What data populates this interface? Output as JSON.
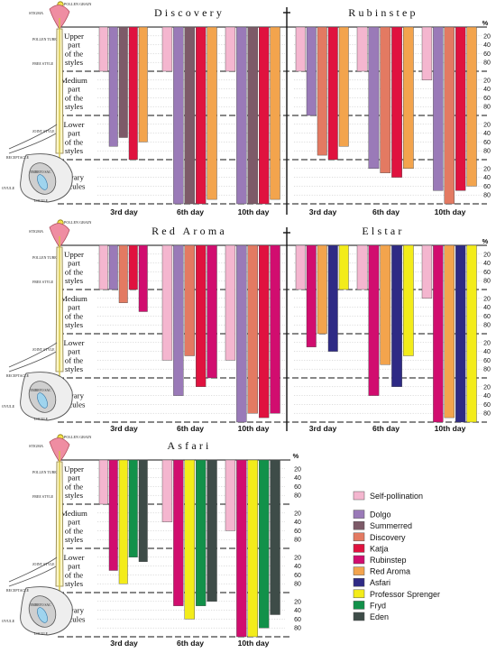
{
  "pistil_labels": {
    "pollen_grain": "POLLEN GRAIN",
    "stigma": "STIGMA",
    "pollen_tube": "POLLEN TUBE",
    "free_style": "FREE STYLE",
    "joint_style": "JOINT STYLE",
    "receptacle": "RECEPTACLE",
    "embryo_sac": "EMBRYO SAC",
    "ovule": "OVULE",
    "locule": "LOCULE"
  },
  "zones": [
    "Upper part of the styles",
    "Medium part of the styles",
    "Lower part of the styles",
    "Ovary locules"
  ],
  "zone_lines": [
    [
      "Upper",
      "part",
      "of the",
      "styles"
    ],
    [
      "Medium",
      "part",
      "of the",
      "styles"
    ],
    [
      "Lower",
      "part",
      "of the",
      "styles"
    ],
    [
      "Ovary",
      "locules"
    ]
  ],
  "percent_label": "%",
  "y_ticks": [
    [
      "20",
      "40",
      "60",
      "80"
    ],
    [
      "20",
      "40",
      "60",
      "80"
    ],
    [
      "20",
      "40",
      "60",
      "80"
    ],
    [
      "20",
      "40",
      "60",
      "80"
    ]
  ],
  "day_labels": [
    "3rd day",
    "6th day",
    "10th day"
  ],
  "legend": [
    {
      "name": "Self-pollination",
      "color": "#f4b6cf"
    },
    {
      "name": "Dolgo",
      "color": "#9a7ab8"
    },
    {
      "name": "Summerred",
      "color": "#7d5a68"
    },
    {
      "name": "Discovery",
      "color": "#e37a62"
    },
    {
      "name": "Katja",
      "color": "#e0123f"
    },
    {
      "name": "Rubinstep",
      "color": "#d10d6f"
    },
    {
      "name": "Red Aroma",
      "color": "#f3a44d"
    },
    {
      "name": "Asfari",
      "color": "#2e2a85"
    },
    {
      "name": "Professor Sprenger",
      "color": "#f3ec1a"
    },
    {
      "name": "Fryd",
      "color": "#12914a"
    },
    {
      "name": "Eden",
      "color": "#3e4c48"
    }
  ],
  "chart_data": [
    {
      "type": "bar",
      "title": "Discovery",
      "categories": [
        "3rd day",
        "6th day",
        "10th day"
      ],
      "y_unit": "cumulative zone position (0–4, 1 zone = 100%)",
      "series": [
        {
          "name": "Self-pollination",
          "values": [
            1.0,
            1.0,
            1.0
          ]
        },
        {
          "name": "Dolgo",
          "values": [
            2.7,
            4.0,
            4.0
          ]
        },
        {
          "name": "Summerred",
          "values": [
            2.5,
            4.0,
            4.0
          ]
        },
        {
          "name": "Katja",
          "values": [
            3.0,
            4.0,
            4.0
          ]
        },
        {
          "name": "Red Aroma",
          "values": [
            2.6,
            3.9,
            3.9
          ]
        }
      ]
    },
    {
      "type": "bar",
      "title": "Rubinstep",
      "categories": [
        "3rd day",
        "6th day",
        "10th day"
      ],
      "series": [
        {
          "name": "Self-pollination",
          "values": [
            1.0,
            1.0,
            1.2
          ]
        },
        {
          "name": "Dolgo",
          "values": [
            2.0,
            3.2,
            3.7
          ]
        },
        {
          "name": "Discovery",
          "values": [
            2.9,
            3.3,
            4.0
          ]
        },
        {
          "name": "Katja",
          "values": [
            3.0,
            3.4,
            3.7
          ]
        },
        {
          "name": "Red Aroma",
          "values": [
            2.7,
            3.2,
            3.6
          ]
        }
      ]
    },
    {
      "type": "bar",
      "title": "Red Aroma",
      "categories": [
        "3rd day",
        "6th day",
        "10th day"
      ],
      "series": [
        {
          "name": "Self-pollination",
          "values": [
            1.0,
            2.6,
            2.6
          ]
        },
        {
          "name": "Dolgo",
          "values": [
            1.0,
            3.4,
            4.0
          ]
        },
        {
          "name": "Discovery",
          "values": [
            1.3,
            2.5,
            3.8
          ]
        },
        {
          "name": "Katja",
          "values": [
            1.0,
            3.2,
            3.9
          ]
        },
        {
          "name": "Rubinstep",
          "values": [
            1.5,
            3.0,
            3.8
          ]
        }
      ]
    },
    {
      "type": "bar",
      "title": "Elstar",
      "categories": [
        "3rd day",
        "6th day",
        "10th day"
      ],
      "series": [
        {
          "name": "Self-pollination",
          "values": [
            1.0,
            1.0,
            1.2
          ]
        },
        {
          "name": "Rubinstep",
          "values": [
            2.3,
            3.4,
            4.0
          ]
        },
        {
          "name": "Red Aroma",
          "values": [
            2.0,
            2.7,
            3.9
          ]
        },
        {
          "name": "Asfari",
          "values": [
            2.4,
            3.2,
            4.0
          ]
        },
        {
          "name": "Professor Sprenger",
          "values": [
            1.0,
            2.5,
            4.0
          ]
        }
      ]
    },
    {
      "type": "bar",
      "title": "Asfari",
      "categories": [
        "3rd day",
        "6th day",
        "10th day"
      ],
      "series": [
        {
          "name": "Self-pollination",
          "values": [
            1.0,
            1.4,
            1.6
          ]
        },
        {
          "name": "Rubinstep",
          "values": [
            2.5,
            3.3,
            4.0
          ]
        },
        {
          "name": "Professor Sprenger",
          "values": [
            2.8,
            3.6,
            4.0
          ]
        },
        {
          "name": "Fryd",
          "values": [
            2.2,
            3.3,
            3.8
          ]
        },
        {
          "name": "Eden",
          "values": [
            2.3,
            3.2,
            3.5
          ]
        }
      ]
    }
  ]
}
